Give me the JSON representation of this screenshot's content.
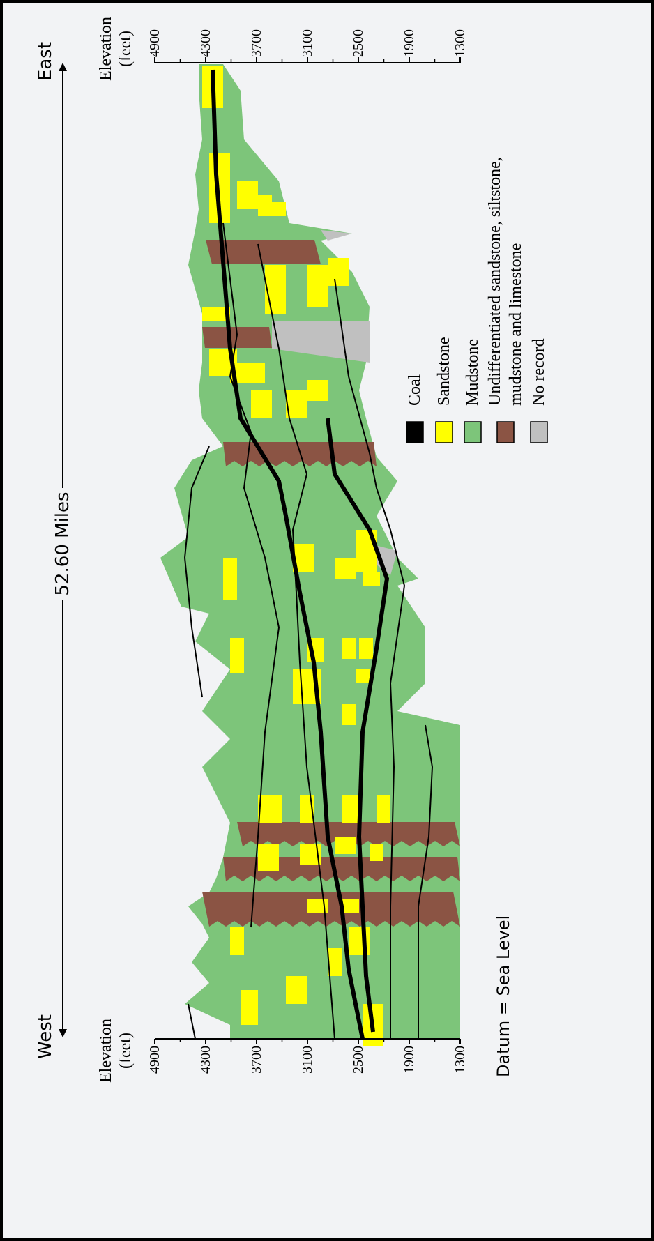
{
  "header": {
    "west": "West",
    "east": "East",
    "distance": "52.60 Miles"
  },
  "left_axis": {
    "label_lines": [
      "Elevation",
      "(feet)"
    ],
    "lim": [
      4900,
      1300
    ],
    "ticks": [
      4900,
      4300,
      3700,
      3100,
      2500,
      1900,
      1300
    ]
  },
  "right_axis": {
    "label_lines": [
      "Elevation",
      "(feet)"
    ],
    "lim": [
      4900,
      1300
    ],
    "ticks": [
      4900,
      4300,
      3700,
      3100,
      2500,
      1900,
      1300
    ]
  },
  "legend": [
    {
      "label_lines": [
        "Coal"
      ],
      "color": "#000000"
    },
    {
      "label_lines": [
        "Sandstone"
      ],
      "color": "#ffff00"
    },
    {
      "label_lines": [
        "Mudstone"
      ],
      "color": "#7dc57a"
    },
    {
      "label_lines": [
        "Undifferentiated sandstone, siltstone,",
        "mudstone and limestone"
      ],
      "color": "#8b5444"
    },
    {
      "label_lines": [
        "No record"
      ],
      "color": "#c0c0c0"
    }
  ],
  "datum": "Datum = Sea Level"
}
